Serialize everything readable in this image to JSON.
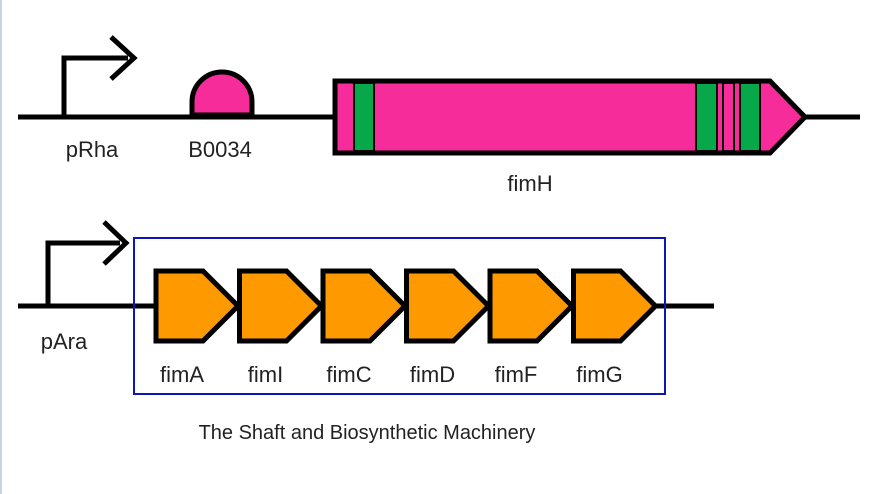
{
  "construct1": {
    "promoter_label": "pRha",
    "rbs_label": "B0034",
    "cds_label": "fimH"
  },
  "construct2": {
    "promoter_label": "pAra",
    "genes": [
      {
        "label": "fimA"
      },
      {
        "label": "fimI"
      },
      {
        "label": "fimC"
      },
      {
        "label": "fimD"
      },
      {
        "label": "fimF"
      },
      {
        "label": "fimG"
      }
    ]
  },
  "caption": "The Shaft and Biosynthetic Machinery",
  "colors": {
    "backbone": "#000000",
    "fimh_fill": "#f52c99",
    "fimh_stripe": "#06a84a",
    "rbs_fill": "#f52c99",
    "gene_fill": "#ff9900",
    "box_border": "#0a16b8"
  }
}
